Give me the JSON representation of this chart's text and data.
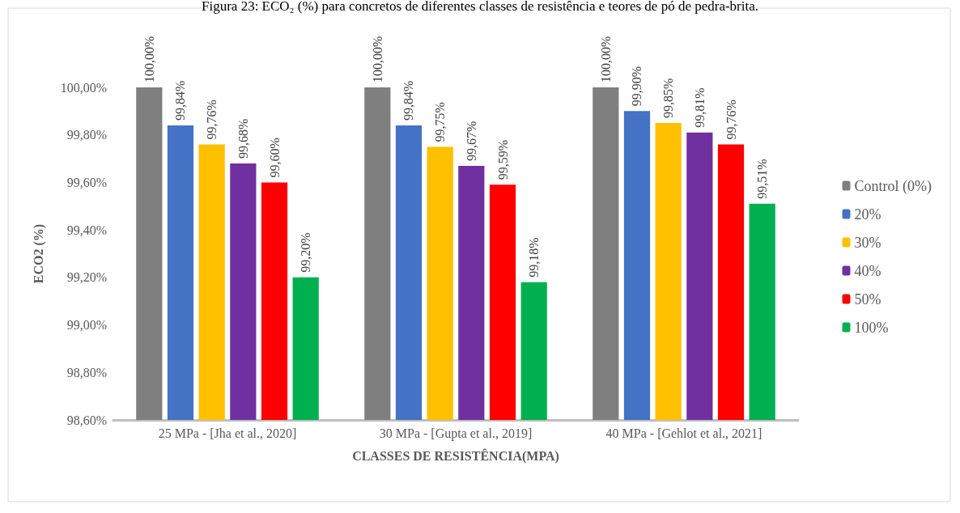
{
  "chart_data": {
    "type": "bar",
    "title": "Figura 23: ECO₂ (%) para concretos de diferentes classes de resistência e teores de pó de pedra-brita.",
    "xlabel": "CLASSES DE RESISTÊNCIA(MPA)",
    "ylabel": "ECO2 (%)",
    "categories": [
      "25 MPa - [Jha et al., 2020]",
      "30 MPa - [Gupta et al., 2019]",
      "40 MPa - [Gehlot et al., 2021]"
    ],
    "series": [
      {
        "name": "Control (0%)",
        "color": "#7f7f7f",
        "values": [
          100.0,
          100.0,
          100.0
        ],
        "value_labels": [
          "100,00%",
          "100,00%",
          "100,00%"
        ]
      },
      {
        "name": "20%",
        "color": "#4472c4",
        "values": [
          99.84,
          99.84,
          99.9
        ],
        "value_labels": [
          "99,84%",
          "99,84%",
          "99,90%"
        ]
      },
      {
        "name": "30%",
        "color": "#ffc000",
        "values": [
          99.76,
          99.75,
          99.85
        ],
        "value_labels": [
          "99,76%",
          "99,75%",
          "99,85%"
        ]
      },
      {
        "name": "40%",
        "color": "#7030a0",
        "values": [
          99.68,
          99.67,
          99.81
        ],
        "value_labels": [
          "99,68%",
          "99,67%",
          "99,81%"
        ]
      },
      {
        "name": "50%",
        "color": "#ff0000",
        "values": [
          99.6,
          99.59,
          99.76
        ],
        "value_labels": [
          "99,60%",
          "99,59%",
          "99,76%"
        ]
      },
      {
        "name": "100%",
        "color": "#00b050",
        "values": [
          99.2,
          99.18,
          99.51
        ],
        "value_labels": [
          "99,20%",
          "99,18%",
          "99,51%"
        ]
      }
    ],
    "ylim": [
      98.6,
      100.0
    ],
    "yticks": [
      {
        "value": 98.6,
        "label": "98,60%"
      },
      {
        "value": 98.8,
        "label": "98,80%"
      },
      {
        "value": 99.0,
        "label": "99,00%"
      },
      {
        "value": 99.2,
        "label": "99,20%"
      },
      {
        "value": 99.4,
        "label": "99,40%"
      },
      {
        "value": 99.6,
        "label": "99,60%"
      },
      {
        "value": 99.8,
        "label": "99,80%"
      },
      {
        "value": 100.0,
        "label": "100,00%"
      }
    ],
    "grid": false,
    "legend": "right"
  }
}
